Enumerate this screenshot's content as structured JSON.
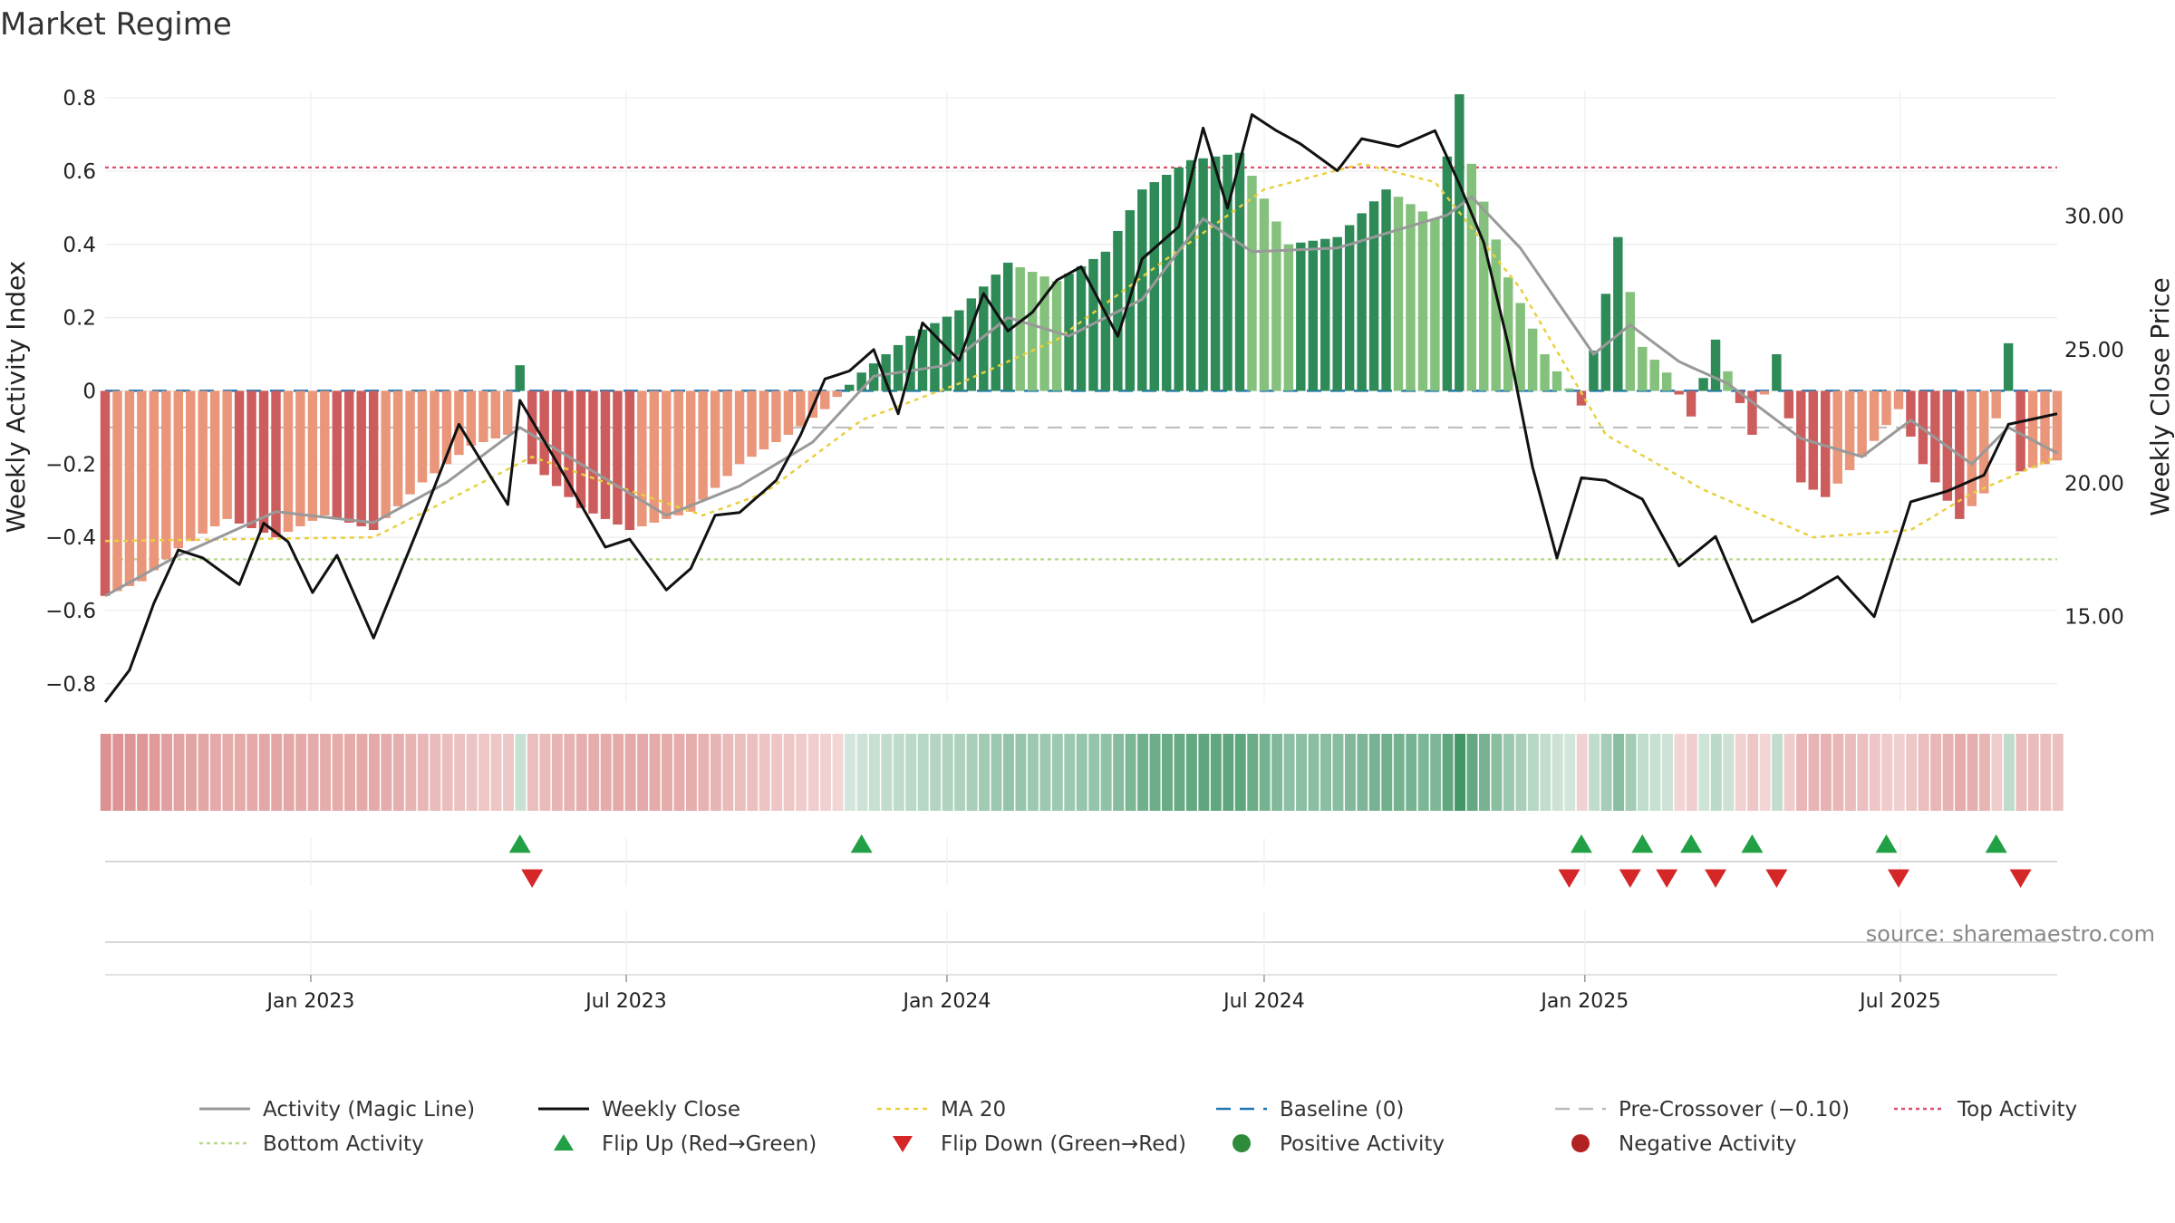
{
  "chart_data": {
    "type": "bar",
    "title": "Market Regime",
    "ylabel": "Weekly Activity Index",
    "y2label": "Weekly Close Price",
    "ylim": [
      -0.85,
      0.82
    ],
    "y2lim": [
      11.8,
      34.7
    ],
    "y_ticks": [
      -0.8,
      -0.6,
      -0.4,
      -0.2,
      0,
      0.2,
      0.4,
      0.6,
      0.8
    ],
    "y_tick_labels": [
      "−0.8",
      "−0.6",
      "−0.4",
      "−0.2",
      "0",
      "0.2",
      "0.4",
      "0.6",
      "0.8"
    ],
    "y2_ticks": [
      15,
      20,
      25,
      30
    ],
    "y2_tick_labels": [
      "15.00",
      "20.00",
      "25.00",
      "30.00"
    ],
    "x_start": "2022-09-05",
    "x_end": "2025-09-29",
    "x_ticks": [
      {
        "date": "2023-01-01",
        "label": "Jan 2023"
      },
      {
        "date": "2023-07-01",
        "label": "Jul 2023"
      },
      {
        "date": "2024-01-01",
        "label": "Jan 2024"
      },
      {
        "date": "2024-07-01",
        "label": "Jul 2024"
      },
      {
        "date": "2025-01-01",
        "label": "Jan 2025"
      },
      {
        "date": "2025-07-01",
        "label": "Jul 2025"
      }
    ],
    "top_activity": 0.61,
    "bottom_activity": -0.46,
    "pre_crossover": -0.1,
    "baseline": 0,
    "grid": true,
    "legend_position": "bottom",
    "colors": {
      "strong_green": "#2e8b57",
      "light_green": "#84c17c",
      "strong_red": "#cd5c5c",
      "light_red": "#e9967a",
      "magic_line": "#999999",
      "close": "#111111",
      "ma20": "#e8d040",
      "baseline": "#1f77b4",
      "pre_crossover": "#bbbbbb",
      "top": "#d9536f",
      "bottom": "#b5d98a",
      "flip_up": "#22a045",
      "flip_down": "#d62728"
    },
    "activity_anchors": [
      [
        "2022-09-05",
        -0.56
      ],
      [
        "2022-09-26",
        -0.52
      ],
      [
        "2022-10-17",
        -0.43
      ],
      [
        "2022-11-14",
        -0.35
      ],
      [
        "2022-12-12",
        -0.4
      ],
      [
        "2023-01-09",
        -0.34
      ],
      [
        "2023-02-06",
        -0.38
      ],
      [
        "2023-03-06",
        -0.25
      ],
      [
        "2023-04-03",
        -0.15
      ],
      [
        "2023-04-24",
        -0.12
      ],
      [
        "2023-05-01",
        0.07
      ],
      [
        "2023-05-08",
        -0.2
      ],
      [
        "2023-06-05",
        -0.32
      ],
      [
        "2023-07-03",
        -0.38
      ],
      [
        "2023-08-07",
        -0.33
      ],
      [
        "2023-09-04",
        -0.2
      ],
      [
        "2023-10-02",
        -0.12
      ],
      [
        "2023-10-23",
        -0.05
      ],
      [
        "2023-11-13",
        0.05
      ],
      [
        "2023-12-11",
        0.15
      ],
      [
        "2024-01-08",
        0.22
      ],
      [
        "2024-02-05",
        0.35
      ],
      [
        "2024-03-04",
        0.3
      ],
      [
        "2024-04-01",
        0.38
      ],
      [
        "2024-04-22",
        0.55
      ],
      [
        "2024-05-20",
        0.63
      ],
      [
        "2024-06-17",
        0.65
      ],
      [
        "2024-07-15",
        0.4
      ],
      [
        "2024-08-12",
        0.42
      ],
      [
        "2024-09-09",
        0.55
      ],
      [
        "2024-10-07",
        0.47
      ],
      [
        "2024-10-21",
        0.81
      ],
      [
        "2024-10-28",
        0.62
      ],
      [
        "2024-11-18",
        0.31
      ],
      [
        "2024-12-09",
        0.1
      ],
      [
        "2024-12-30",
        -0.04
      ],
      [
        "2025-01-06",
        0.11
      ],
      [
        "2025-01-20",
        0.42
      ],
      [
        "2025-02-03",
        0.12
      ],
      [
        "2025-02-17",
        0.05
      ],
      [
        "2025-03-03",
        -0.07
      ],
      [
        "2025-03-17",
        0.14
      ],
      [
        "2025-04-07",
        -0.12
      ],
      [
        "2025-04-21",
        0.1
      ],
      [
        "2025-05-05",
        -0.25
      ],
      [
        "2025-05-19",
        -0.29
      ],
      [
        "2025-06-09",
        -0.18
      ],
      [
        "2025-06-30",
        -0.05
      ],
      [
        "2025-07-14",
        -0.2
      ],
      [
        "2025-08-04",
        -0.35
      ],
      [
        "2025-08-18",
        -0.28
      ],
      [
        "2025-09-01",
        0.13
      ],
      [
        "2025-09-08",
        -0.22
      ],
      [
        "2025-09-29",
        -0.19
      ]
    ],
    "magic_line_anchors": [
      [
        "2022-09-05",
        -0.56
      ],
      [
        "2022-10-17",
        -0.45
      ],
      [
        "2022-12-12",
        -0.33
      ],
      [
        "2023-02-06",
        -0.36
      ],
      [
        "2023-03-20",
        -0.25
      ],
      [
        "2023-05-01",
        -0.1
      ],
      [
        "2023-06-12",
        -0.22
      ],
      [
        "2023-07-24",
        -0.34
      ],
      [
        "2023-09-04",
        -0.26
      ],
      [
        "2023-10-16",
        -0.14
      ],
      [
        "2023-11-20",
        0.04
      ],
      [
        "2024-01-01",
        0.07
      ],
      [
        "2024-02-05",
        0.2
      ],
      [
        "2024-03-11",
        0.15
      ],
      [
        "2024-04-22",
        0.25
      ],
      [
        "2024-05-27",
        0.47
      ],
      [
        "2024-06-24",
        0.38
      ],
      [
        "2024-08-12",
        0.39
      ],
      [
        "2024-10-14",
        0.48
      ],
      [
        "2024-10-28",
        0.53
      ],
      [
        "2024-11-25",
        0.39
      ],
      [
        "2025-01-06",
        0.1
      ],
      [
        "2025-01-27",
        0.18
      ],
      [
        "2025-02-24",
        0.08
      ],
      [
        "2025-03-24",
        0.02
      ],
      [
        "2025-05-05",
        -0.13
      ],
      [
        "2025-06-09",
        -0.18
      ],
      [
        "2025-07-07",
        -0.08
      ],
      [
        "2025-08-11",
        -0.2
      ],
      [
        "2025-09-01",
        -0.1
      ],
      [
        "2025-09-29",
        -0.17
      ]
    ],
    "ma20_anchors": [
      [
        "2022-09-05",
        -0.41
      ],
      [
        "2023-02-06",
        -0.4
      ],
      [
        "2023-03-20",
        -0.3
      ],
      [
        "2023-05-08",
        -0.18
      ],
      [
        "2023-06-19",
        -0.25
      ],
      [
        "2023-08-14",
        -0.34
      ],
      [
        "2023-09-18",
        -0.28
      ],
      [
        "2023-11-13",
        -0.08
      ],
      [
        "2024-01-08",
        0.02
      ],
      [
        "2024-03-04",
        0.14
      ],
      [
        "2024-05-06",
        0.36
      ],
      [
        "2024-07-01",
        0.55
      ],
      [
        "2024-08-26",
        0.62
      ],
      [
        "2024-10-07",
        0.57
      ],
      [
        "2024-11-25",
        0.28
      ],
      [
        "2025-01-13",
        -0.12
      ],
      [
        "2025-03-10",
        -0.27
      ],
      [
        "2025-05-12",
        -0.4
      ],
      [
        "2025-07-07",
        -0.38
      ],
      [
        "2025-08-11",
        -0.28
      ],
      [
        "2025-09-29",
        -0.18
      ]
    ],
    "close_anchors": [
      [
        "2022-09-05",
        11.8
      ],
      [
        "2022-09-19",
        13.0
      ],
      [
        "2022-10-03",
        15.5
      ],
      [
        "2022-10-17",
        17.5
      ],
      [
        "2022-10-31",
        17.2
      ],
      [
        "2022-11-21",
        16.2
      ],
      [
        "2022-12-05",
        18.5
      ],
      [
        "2022-12-19",
        17.8
      ],
      [
        "2023-01-02",
        15.9
      ],
      [
        "2023-01-16",
        17.3
      ],
      [
        "2023-02-06",
        14.2
      ],
      [
        "2023-03-06",
        18.7
      ],
      [
        "2023-03-27",
        22.2
      ],
      [
        "2023-04-24",
        19.2
      ],
      [
        "2023-05-01",
        23.1
      ],
      [
        "2023-05-22",
        20.8
      ],
      [
        "2023-06-19",
        17.6
      ],
      [
        "2023-07-03",
        17.9
      ],
      [
        "2023-07-24",
        16.0
      ],
      [
        "2023-08-07",
        16.8
      ],
      [
        "2023-08-21",
        18.8
      ],
      [
        "2023-09-04",
        18.9
      ],
      [
        "2023-09-25",
        20.1
      ],
      [
        "2023-10-09",
        21.8
      ],
      [
        "2023-10-23",
        23.9
      ],
      [
        "2023-11-06",
        24.2
      ],
      [
        "2023-11-20",
        25.0
      ],
      [
        "2023-12-04",
        22.6
      ],
      [
        "2023-12-18",
        26.0
      ],
      [
        "2024-01-08",
        24.6
      ],
      [
        "2024-01-22",
        27.1
      ],
      [
        "2024-02-05",
        25.7
      ],
      [
        "2024-02-19",
        26.4
      ],
      [
        "2024-03-04",
        27.6
      ],
      [
        "2024-03-18",
        28.1
      ],
      [
        "2024-04-08",
        25.5
      ],
      [
        "2024-04-22",
        28.4
      ],
      [
        "2024-05-13",
        29.6
      ],
      [
        "2024-05-27",
        33.3
      ],
      [
        "2024-06-10",
        30.3
      ],
      [
        "2024-06-24",
        33.8
      ],
      [
        "2024-07-08",
        33.2
      ],
      [
        "2024-07-22",
        32.7
      ],
      [
        "2024-08-12",
        31.7
      ],
      [
        "2024-08-26",
        32.9
      ],
      [
        "2024-09-16",
        32.6
      ],
      [
        "2024-10-07",
        33.2
      ],
      [
        "2024-10-21",
        31.2
      ],
      [
        "2024-11-04",
        29.0
      ],
      [
        "2024-11-18",
        25.2
      ],
      [
        "2024-12-02",
        20.6
      ],
      [
        "2024-12-16",
        17.2
      ],
      [
        "2024-12-30",
        20.2
      ],
      [
        "2025-01-13",
        20.1
      ],
      [
        "2025-02-03",
        19.4
      ],
      [
        "2025-02-24",
        16.9
      ],
      [
        "2025-03-17",
        18.0
      ],
      [
        "2025-04-07",
        14.8
      ],
      [
        "2025-05-05",
        15.7
      ],
      [
        "2025-05-26",
        16.5
      ],
      [
        "2025-06-16",
        15.0
      ],
      [
        "2025-07-07",
        19.3
      ],
      [
        "2025-07-28",
        19.7
      ],
      [
        "2025-08-18",
        20.3
      ],
      [
        "2025-09-01",
        22.2
      ],
      [
        "2025-09-29",
        22.6
      ]
    ],
    "flip_up": [
      "2023-05-01",
      "2023-11-13",
      "2024-12-30",
      "2025-02-03",
      "2025-03-03",
      "2025-04-07",
      "2025-06-23",
      "2025-08-25"
    ],
    "flip_down": [
      "2023-05-08",
      "2024-12-23",
      "2025-01-27",
      "2025-02-17",
      "2025-03-17",
      "2025-04-21",
      "2025-06-30",
      "2025-09-08"
    ],
    "legend": [
      {
        "key": "magic",
        "label": "Activity (Magic Line)"
      },
      {
        "key": "close",
        "label": "Weekly Close"
      },
      {
        "key": "ma20",
        "label": "MA 20"
      },
      {
        "key": "baseline",
        "label": "Baseline (0)"
      },
      {
        "key": "pre",
        "label": "Pre-Crossover (−0.10)"
      },
      {
        "key": "top",
        "label": "Top Activity"
      },
      {
        "key": "bottom",
        "label": "Bottom Activity"
      },
      {
        "key": "flipup",
        "label": "Flip Up (Red→Green)"
      },
      {
        "key": "flipdown",
        "label": "Flip Down (Green→Red)"
      },
      {
        "key": "pos",
        "label": "Positive Activity"
      },
      {
        "key": "neg",
        "label": "Negative Activity"
      }
    ],
    "source": "source: sharemaestro.com"
  }
}
